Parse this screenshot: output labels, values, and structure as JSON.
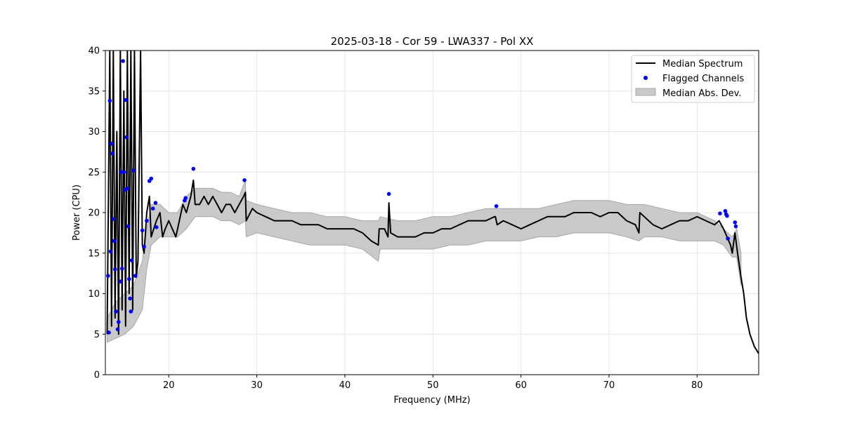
{
  "chart_data": {
    "type": "line",
    "title": "2025-03-18 - Cor 59 - LWA337 - Pol XX",
    "xlabel": "Frequency (MHz)",
    "ylabel": "Power (CPU)",
    "xlim": [
      12.8,
      87.0
    ],
    "ylim": [
      0,
      40
    ],
    "xticks": [
      20,
      30,
      40,
      50,
      60,
      70,
      80
    ],
    "yticks": [
      0,
      5,
      10,
      15,
      20,
      25,
      30,
      35,
      40
    ],
    "grid": true,
    "legend_position": "top-right",
    "legend": [
      "Median Spectrum",
      "Flagged Channels",
      "Median Abs. Dev."
    ],
    "colors": {
      "median": "#000000",
      "flagged": "#0000ff",
      "band": "#c9c9c9",
      "band_edge": "#a8a8a8"
    },
    "series": [
      {
        "name": "Median Spectrum",
        "x": [
          13.0,
          13.3,
          13.5,
          13.7,
          13.9,
          14.1,
          14.3,
          14.5,
          14.7,
          14.9,
          15.1,
          15.3,
          15.5,
          15.7,
          15.9,
          16.1,
          16.3,
          16.5,
          16.8,
          17.0,
          17.2,
          17.5,
          17.8,
          18.0,
          18.3,
          18.6,
          19.0,
          19.3,
          19.6,
          20.0,
          20.4,
          20.8,
          21.2,
          21.6,
          22.0,
          22.5,
          22.8,
          23.0,
          23.5,
          24.0,
          24.5,
          25.0,
          25.5,
          26.0,
          26.5,
          27.0,
          27.5,
          28.0,
          28.5,
          28.7,
          28.8,
          29.5,
          30.0,
          31.0,
          32.0,
          33.0,
          34.0,
          35.0,
          36.0,
          37.0,
          38.0,
          39.0,
          40.0,
          41.0,
          42.0,
          43.0,
          43.8,
          43.9,
          44.5,
          44.9,
          45.0,
          45.2,
          46.0,
          47.0,
          48.0,
          49.0,
          50.0,
          51.0,
          52.0,
          53.0,
          54.0,
          55.0,
          56.0,
          57.0,
          57.1,
          57.3,
          58.0,
          59.0,
          60.0,
          61.0,
          62.0,
          63.0,
          64.0,
          65.0,
          66.0,
          67.0,
          68.0,
          69.0,
          70.0,
          71.0,
          72.0,
          73.0,
          73.4,
          73.5,
          74.0,
          75.0,
          76.0,
          77.0,
          78.0,
          79.0,
          80.0,
          81.0,
          82.0,
          82.5,
          83.0,
          83.4,
          83.8,
          84.0,
          84.3,
          84.6,
          85.0,
          85.3,
          85.6,
          86.0,
          86.5,
          87.0
        ],
        "y": [
          5,
          40,
          6,
          40,
          7,
          30,
          5,
          40,
          8,
          35,
          6,
          40,
          10,
          40,
          8,
          40,
          12,
          14,
          40,
          16,
          15,
          20,
          22,
          17,
          18,
          19,
          20,
          17,
          18,
          19,
          18,
          17,
          19,
          21,
          20,
          22,
          24,
          21,
          21,
          22,
          21,
          22,
          21,
          20,
          21,
          21,
          20,
          21,
          22,
          22.5,
          19,
          20.5,
          20,
          19.5,
          19,
          19,
          19,
          18.5,
          18.5,
          18.5,
          18,
          18,
          18,
          18,
          17.5,
          16.5,
          16,
          18,
          18,
          17,
          21.2,
          17.5,
          17,
          17,
          17,
          17.5,
          17.5,
          18,
          18,
          18.5,
          19,
          19,
          19,
          19.5,
          19.5,
          18.5,
          19,
          18.5,
          18,
          18.5,
          19,
          19.5,
          19.5,
          19.5,
          20,
          20,
          20,
          19.5,
          20,
          20,
          19,
          18.5,
          17.5,
          20,
          19.5,
          18.5,
          18,
          18.5,
          19,
          19,
          19.5,
          19,
          18.5,
          19,
          18,
          17,
          16,
          15,
          17.5,
          15,
          12,
          10,
          7,
          5,
          3.5,
          2.6
        ]
      },
      {
        "name": "Median Abs. Dev.",
        "x": [
          13.0,
          14.0,
          15.0,
          16.0,
          17.0,
          17.5,
          18.0,
          19.0,
          20.0,
          21.0,
          22.0,
          23.0,
          24.0,
          25.0,
          26.0,
          27.0,
          28.0,
          28.7,
          28.8,
          30.0,
          32.0,
          34.0,
          36.0,
          38.0,
          40.0,
          42.0,
          43.8,
          44.0,
          46.0,
          48.0,
          50.0,
          52.0,
          54.0,
          56.0,
          58.0,
          60.0,
          62.0,
          64.0,
          66.0,
          68.0,
          70.0,
          72.0,
          73.4,
          74.0,
          76.0,
          78.0,
          80.0,
          82.0,
          83.0,
          84.0,
          84.5,
          85.0
        ],
        "upper": [
          7,
          9,
          10,
          11,
          14,
          18,
          21,
          21,
          20,
          20,
          22,
          23,
          23,
          23,
          22.5,
          22.5,
          22,
          24,
          21.5,
          21,
          20.5,
          20,
          20,
          19.5,
          19.5,
          19,
          19,
          19.5,
          19,
          19,
          19.5,
          19.5,
          20,
          20.5,
          20.5,
          20.5,
          20.5,
          21,
          21.5,
          21.5,
          21.5,
          21,
          21,
          21,
          20.5,
          20,
          20,
          19,
          18,
          17,
          18,
          15
        ],
        "lower": [
          4,
          4.5,
          5,
          6,
          8,
          13,
          16,
          17,
          17,
          17,
          18,
          19.5,
          19.5,
          19.5,
          19,
          19,
          18.5,
          19,
          17,
          17.5,
          17,
          16.5,
          16,
          16,
          16,
          15.5,
          14,
          15.5,
          15.5,
          15.5,
          15.5,
          16,
          16,
          16.5,
          16.5,
          16.5,
          17,
          17,
          17.5,
          17.5,
          17.5,
          17,
          16.5,
          17,
          17,
          16.5,
          16.5,
          16.5,
          16,
          14.5,
          14.5,
          11
        ]
      },
      {
        "name": "Flagged Channels",
        "x": [
          13.1,
          13.2,
          13.3,
          13.4,
          13.5,
          13.6,
          13.7,
          13.8,
          13.9,
          14.0,
          14.2,
          14.3,
          14.5,
          14.6,
          14.7,
          14.8,
          14.9,
          15.0,
          15.1,
          15.2,
          15.3,
          15.4,
          15.5,
          15.6,
          15.7,
          15.8,
          16.0,
          16.2,
          17.0,
          17.2,
          17.5,
          17.8,
          18.0,
          18.2,
          18.5,
          18.6,
          21.8,
          21.9,
          22.8,
          28.6,
          45.0,
          57.2,
          82.6,
          83.2,
          83.3,
          83.4,
          83.5,
          84.3,
          84.4
        ],
        "y": [
          12.2,
          5.2,
          33.8,
          15.2,
          28.5,
          27.3,
          19.2,
          16.5,
          13.0,
          7.8,
          5.6,
          6.5,
          11.5,
          25.0,
          13.1,
          38.7,
          25.0,
          22.8,
          33.9,
          29.3,
          23.0,
          18.3,
          11.8,
          9.4,
          7.8,
          14.1,
          25.2,
          12.2,
          17.8,
          15.8,
          19.0,
          23.9,
          24.2,
          20.5,
          21.2,
          18.2,
          21.5,
          21.8,
          25.4,
          24.0,
          22.3,
          20.8,
          19.9,
          20.2,
          19.8,
          19.6,
          16.8,
          18.8,
          18.3
        ]
      }
    ]
  }
}
